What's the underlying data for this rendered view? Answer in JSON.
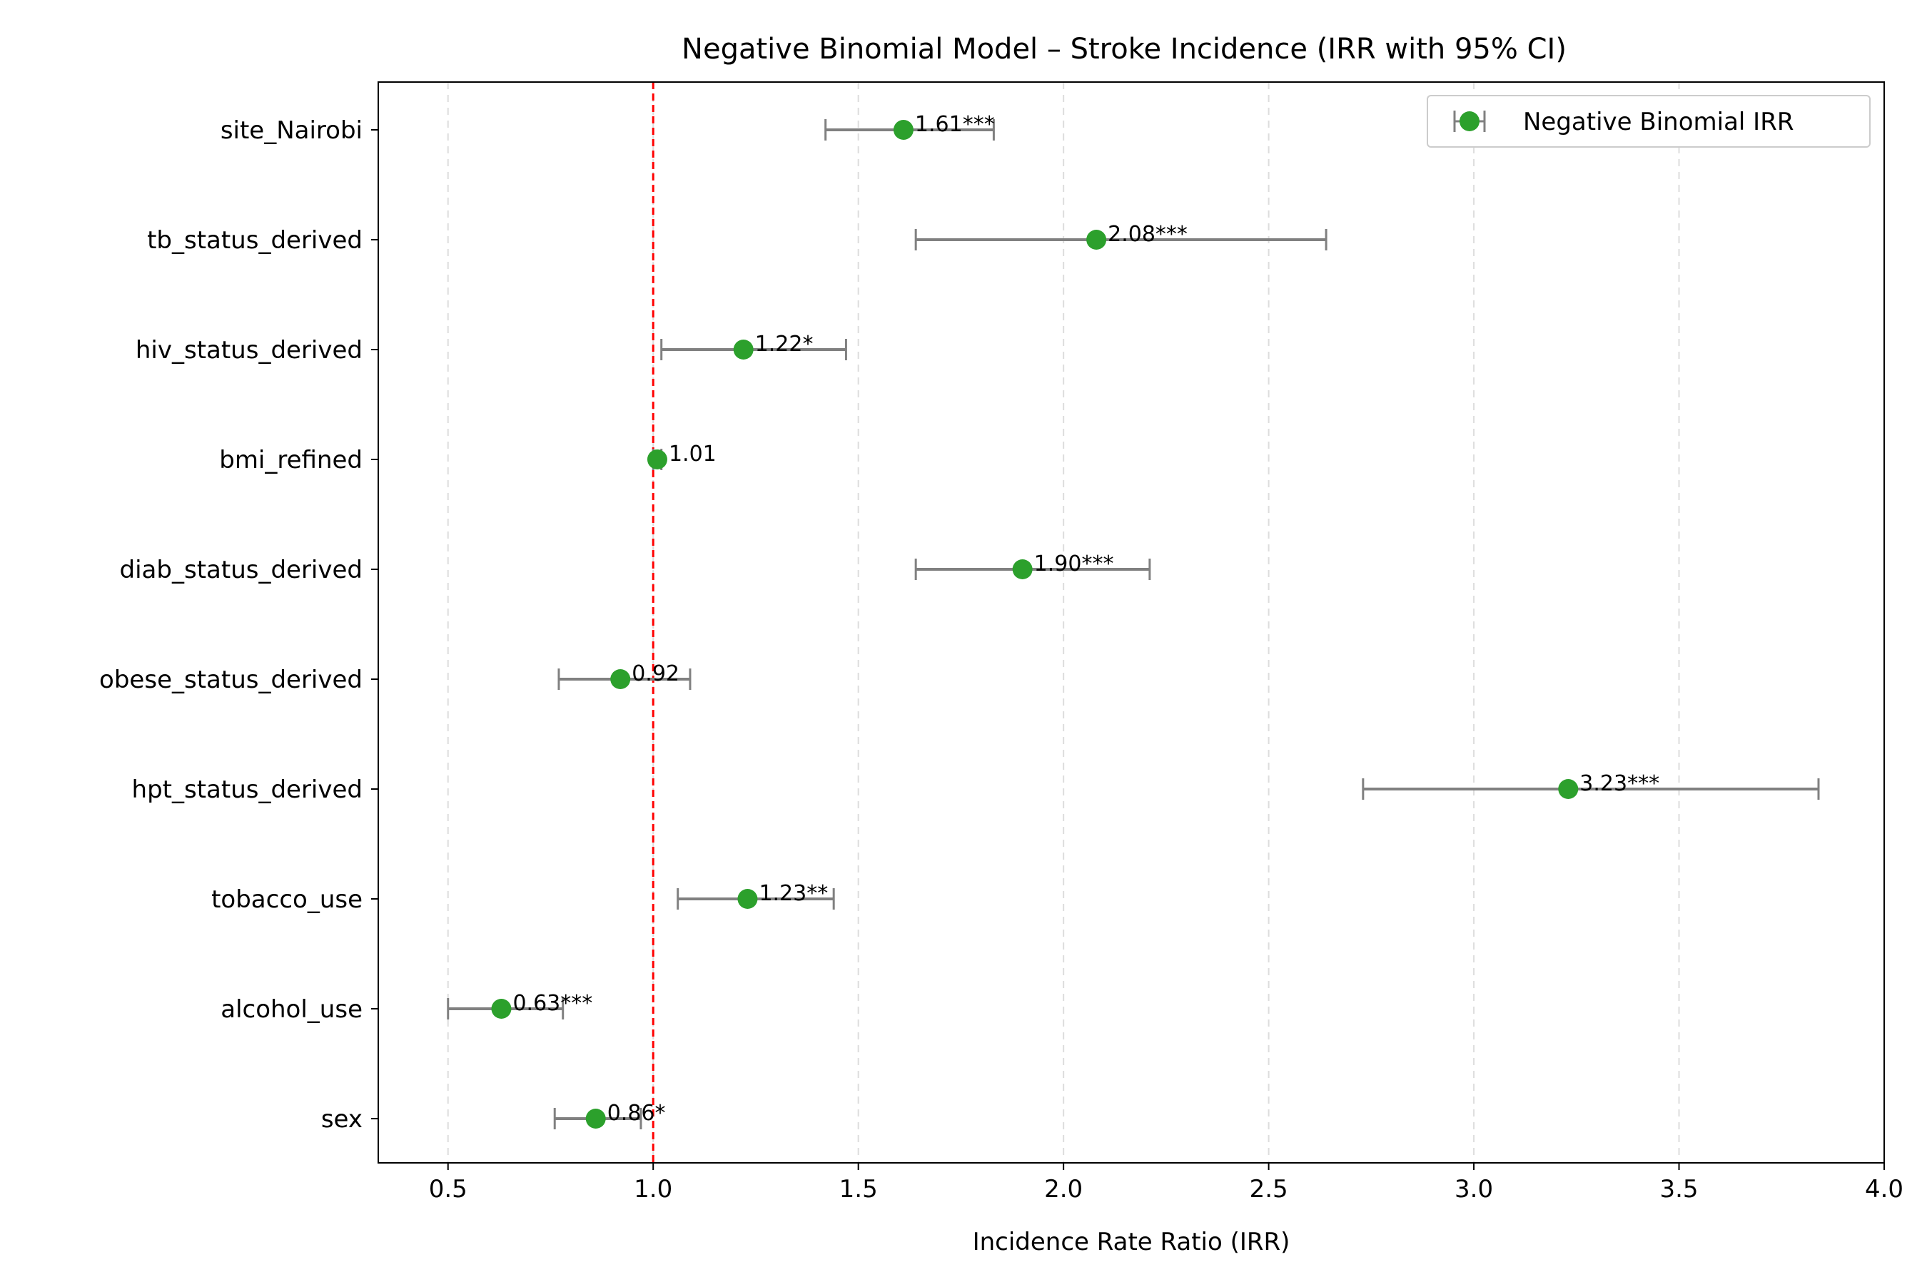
{
  "chart_data": {
    "type": "scatter",
    "subtype": "forest-plot",
    "title": "Negative Binomial Model – Stroke Incidence (IRR with 95% CI)",
    "xlabel": "Incidence Rate Ratio (IRR)",
    "ylabel": "",
    "xlim": [
      0.33,
      4.0
    ],
    "xticks": [
      0.5,
      1.0,
      1.5,
      2.0,
      2.5,
      3.0,
      3.5,
      4.0
    ],
    "xtick_labels": [
      "0.5",
      "1.0",
      "1.5",
      "2.0",
      "2.5",
      "3.0",
      "3.5",
      "4.0"
    ],
    "grid": "x-dashed",
    "reference_line": {
      "x": 1.0,
      "style": "dashed",
      "color": "#ff0000"
    },
    "legend": {
      "position": "top-right",
      "entries": [
        "Negative Binomial IRR"
      ]
    },
    "colors": {
      "point": "#2ca02c",
      "errorbar": "#808080",
      "refline": "#ff0000",
      "grid": "#dddddd"
    },
    "categories": [
      "site_Nairobi",
      "tb_status_derived",
      "hiv_status_derived",
      "bmi_refined",
      "diab_status_derived",
      "obese_status_derived",
      "hpt_status_derived",
      "tobacco_use",
      "alcohol_use",
      "sex"
    ],
    "series": [
      {
        "name": "Negative Binomial IRR",
        "values": [
          1.61,
          2.08,
          1.22,
          1.01,
          1.9,
          0.92,
          3.23,
          1.23,
          0.63,
          0.86
        ],
        "ci_low": [
          1.42,
          1.64,
          1.02,
          1.0,
          1.64,
          0.77,
          2.73,
          1.06,
          0.5,
          0.76
        ],
        "ci_high": [
          1.83,
          2.64,
          1.47,
          1.02,
          2.21,
          1.09,
          3.84,
          1.44,
          0.78,
          0.97
        ],
        "labels": [
          "1.61***",
          "2.08***",
          "1.22*",
          "1.01",
          "1.90***",
          "0.92",
          "3.23***",
          "1.23**",
          "0.63***",
          "0.86*"
        ]
      }
    ]
  }
}
